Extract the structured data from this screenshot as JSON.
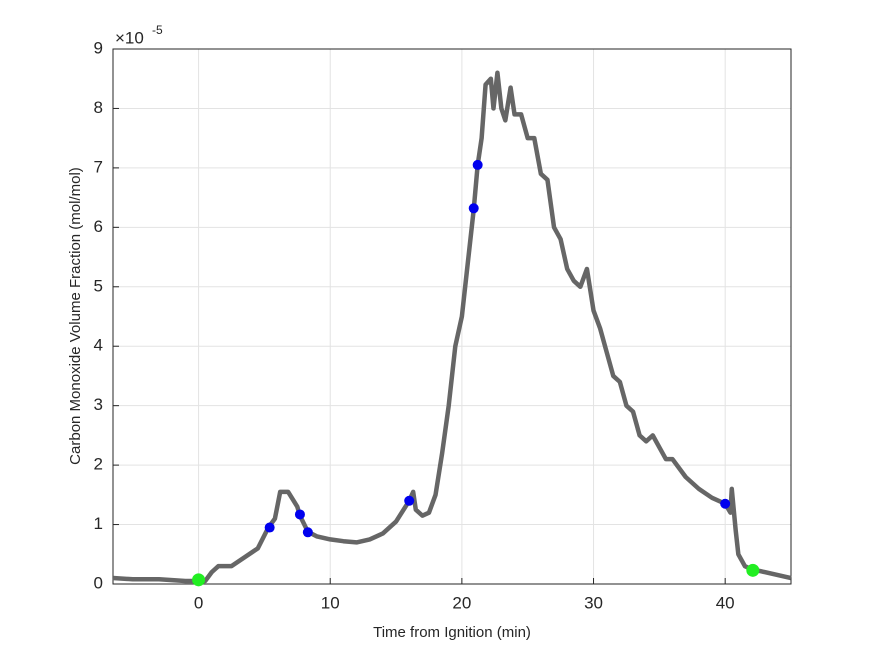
{
  "chart_data": {
    "type": "line",
    "xlabel": "Time from Ignition (min)",
    "ylabel": "Carbon Monoxide Volume Fraction (mol/mol)",
    "y_multiplier": "×10",
    "y_multiplier_exponent": "-5",
    "xlim": [
      -6.5,
      45
    ],
    "ylim": [
      0,
      9
    ],
    "xticks": [
      0,
      10,
      20,
      30,
      40
    ],
    "yticks": [
      0,
      1,
      2,
      3,
      4,
      5,
      6,
      7,
      8,
      9
    ],
    "grid": true,
    "line": {
      "color": "#666666",
      "x": [
        -6.5,
        -5,
        -3,
        -1,
        0,
        0.5,
        1,
        1.5,
        2.5,
        3.5,
        4.5,
        5.3,
        5.8,
        6.2,
        6.8,
        7.5,
        7.7,
        8.3,
        9,
        10,
        11,
        12,
        13,
        14,
        15,
        16,
        16.3,
        16.5,
        17,
        17.5,
        18,
        18.5,
        19,
        19.5,
        20,
        20.5,
        20.9,
        21.2,
        21.5,
        21.8,
        22.2,
        22.4,
        22.7,
        23,
        23.3,
        23.7,
        24,
        24.5,
        25,
        25.5,
        26,
        26.5,
        27,
        27.5,
        28,
        28.5,
        29,
        29.5,
        30,
        30.5,
        31,
        31.5,
        32,
        32.5,
        33,
        33.5,
        34,
        34.5,
        35,
        35.5,
        36,
        37,
        38,
        39,
        40,
        40.4,
        40.5,
        40.8,
        41,
        41.5,
        42,
        43,
        44,
        45
      ],
      "y": [
        0.1,
        0.08,
        0.08,
        0.05,
        0.05,
        0.05,
        0.2,
        0.3,
        0.3,
        0.45,
        0.6,
        0.95,
        1.1,
        1.55,
        1.55,
        1.3,
        1.15,
        0.88,
        0.8,
        0.75,
        0.72,
        0.7,
        0.75,
        0.85,
        1.05,
        1.4,
        1.55,
        1.25,
        1.15,
        1.2,
        1.5,
        2.2,
        3.0,
        4.0,
        4.5,
        5.5,
        6.3,
        7.05,
        7.5,
        8.4,
        8.5,
        8.0,
        8.6,
        8.0,
        7.8,
        8.35,
        7.9,
        7.9,
        7.5,
        7.5,
        6.9,
        6.8,
        6.0,
        5.8,
        5.3,
        5.1,
        5.0,
        5.3,
        4.6,
        4.3,
        3.9,
        3.5,
        3.4,
        3.0,
        2.9,
        2.5,
        2.4,
        2.5,
        2.3,
        2.1,
        2.1,
        1.8,
        1.6,
        1.45,
        1.35,
        1.2,
        1.6,
        0.9,
        0.5,
        0.3,
        0.25,
        0.2,
        0.15,
        0.1
      ]
    },
    "markers": [
      {
        "color": "#0000ee",
        "x": [
          5.4,
          7.7,
          8.3,
          16,
          20.9,
          21.2,
          40
        ],
        "y": [
          0.95,
          1.17,
          0.87,
          1.4,
          6.32,
          7.05,
          1.35
        ]
      },
      {
        "color": "#22ee22",
        "x": [
          0,
          42.1
        ],
        "y": [
          0.07,
          0.23
        ]
      }
    ]
  }
}
